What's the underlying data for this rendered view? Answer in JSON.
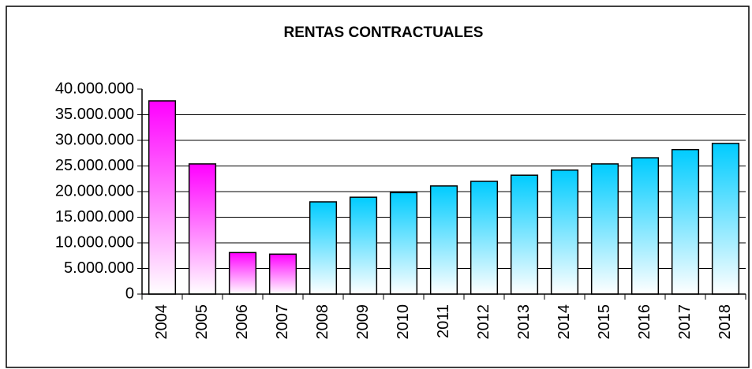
{
  "chart_data": {
    "type": "bar",
    "title": "RENTAS CONTRACTUALES",
    "categories": [
      "2004",
      "2005",
      "2006",
      "2007",
      "2008",
      "2009",
      "2010",
      "2011",
      "2012",
      "2013",
      "2014",
      "2015",
      "2016",
      "2017",
      "2018"
    ],
    "values": [
      37700000,
      25400000,
      8100000,
      7800000,
      18000000,
      18900000,
      19800000,
      21100000,
      22000000,
      23200000,
      24200000,
      25400000,
      26600000,
      28200000,
      29400000
    ],
    "colors": [
      "#ff00ff",
      "#ff00ff",
      "#ff00ff",
      "#ff00ff",
      "#00ccff",
      "#00ccff",
      "#00ccff",
      "#00ccff",
      "#00ccff",
      "#00ccff",
      "#00ccff",
      "#00ccff",
      "#00ccff",
      "#00ccff",
      "#00ccff"
    ],
    "ylim": [
      0,
      40000000
    ],
    "yticks": [
      0,
      {
        "value": 5000000,
        "label": "5.000.000"
      },
      {
        "value": 10000000,
        "label": "10.000.000"
      },
      {
        "value": 15000000,
        "label": "15.000.000"
      },
      {
        "value": 20000000,
        "label": "20.000.000"
      },
      {
        "value": 25000000,
        "label": "25.000.000"
      },
      {
        "value": 30000000,
        "label": "30.000.000"
      },
      {
        "value": 35000000,
        "label": "35.000.000"
      },
      {
        "value": 40000000,
        "label": "40.000.000"
      }
    ],
    "grid": true
  }
}
